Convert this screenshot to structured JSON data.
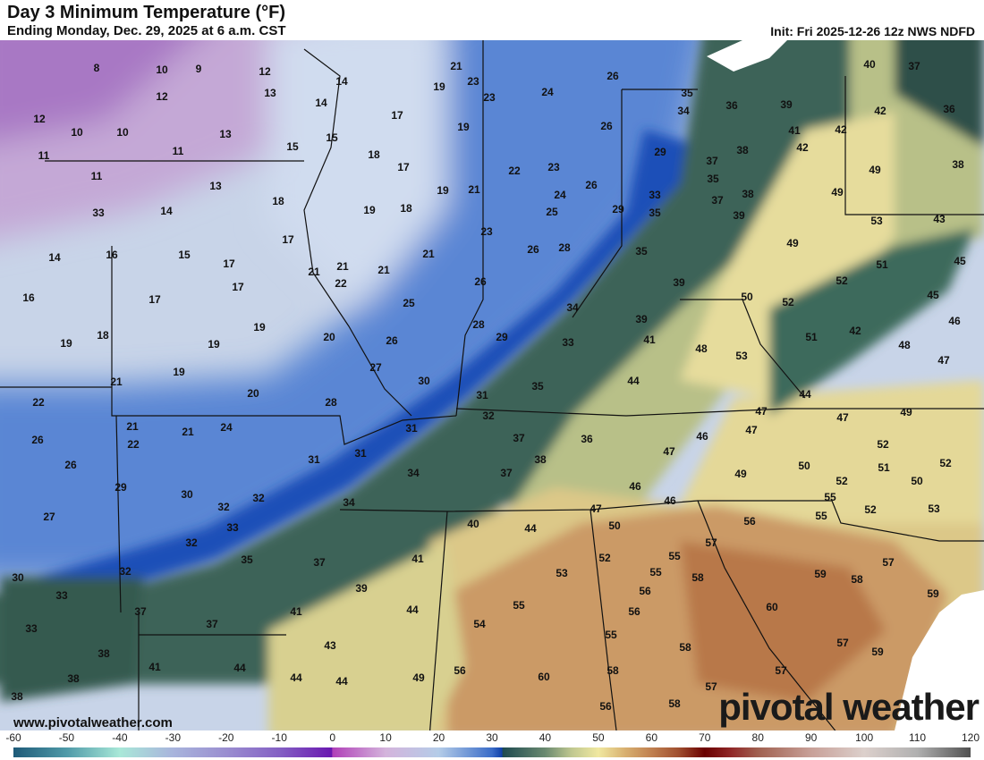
{
  "header": {
    "title": "Day 3 Minimum Temperature (°F)",
    "subtitle": "Ending Monday, Dec. 29, 2025 at 6 a.m. CST",
    "init": "Init: Fri 2025-12-26 12z NWS NDFD"
  },
  "map": {
    "units": "°F",
    "temperature_labels": [
      8,
      10,
      9,
      12,
      13,
      14,
      21,
      19,
      23,
      23,
      26,
      24,
      40,
      37,
      12,
      12,
      10,
      10,
      14,
      17,
      19,
      26,
      35,
      34,
      36,
      39,
      41,
      42,
      42,
      36,
      11,
      11,
      13,
      15,
      15,
      18,
      17,
      11,
      13,
      18,
      19,
      21,
      22,
      23,
      26,
      24,
      29,
      37,
      38,
      42,
      49,
      38,
      33,
      14,
      19,
      18,
      25,
      29,
      33,
      35,
      37,
      38,
      35,
      39,
      49,
      53,
      43,
      14,
      16,
      15,
      17,
      17,
      23,
      26,
      28,
      21,
      21,
      21,
      21,
      22,
      17,
      35,
      49,
      51,
      45,
      16,
      17,
      26,
      39,
      52,
      45,
      50,
      52,
      46,
      25,
      34,
      39,
      19,
      19,
      18,
      19,
      20,
      26,
      28,
      29,
      33,
      41,
      48,
      53,
      51,
      42,
      19,
      21,
      27,
      30,
      35,
      44,
      48,
      47,
      20,
      28,
      31,
      44,
      22,
      21,
      21,
      24,
      32,
      31,
      47,
      47,
      49,
      26,
      22,
      31,
      31,
      37,
      36,
      46,
      47,
      52,
      26,
      34,
      38,
      47,
      49,
      50,
      51,
      52,
      29,
      37,
      46,
      52,
      50,
      30,
      32,
      32,
      34,
      27,
      33,
      47,
      46,
      55,
      55,
      52,
      53,
      40,
      44,
      50,
      56,
      32,
      35,
      37,
      41,
      52,
      55,
      57,
      53,
      55,
      58,
      32,
      30,
      33,
      39,
      59,
      58,
      57,
      59,
      56,
      37,
      41,
      44,
      55,
      56,
      60,
      33,
      37,
      54,
      55,
      43,
      58,
      57,
      59,
      38,
      41,
      44,
      56,
      58,
      57,
      38,
      44,
      44,
      49,
      60,
      57,
      38,
      58,
      56
    ],
    "watermark_url": "www.pivotalweather.com",
    "brand": "pivotal weather",
    "colors": {
      "purple": "#b080c8",
      "light_blue": "#c8d4e8",
      "blue": "#3a6cd0",
      "dark_green": "#3e6458",
      "yellow": "#e0d898",
      "tan": "#c89460",
      "water": "#ffffff"
    }
  },
  "colorbar": {
    "ticks": [
      "-60",
      "-50",
      "-40",
      "-30",
      "-20",
      "-10",
      "0",
      "10",
      "20",
      "30",
      "40",
      "50",
      "60",
      "70",
      "80",
      "90",
      "100",
      "110",
      "120"
    ],
    "range": [
      -60,
      120
    ]
  }
}
